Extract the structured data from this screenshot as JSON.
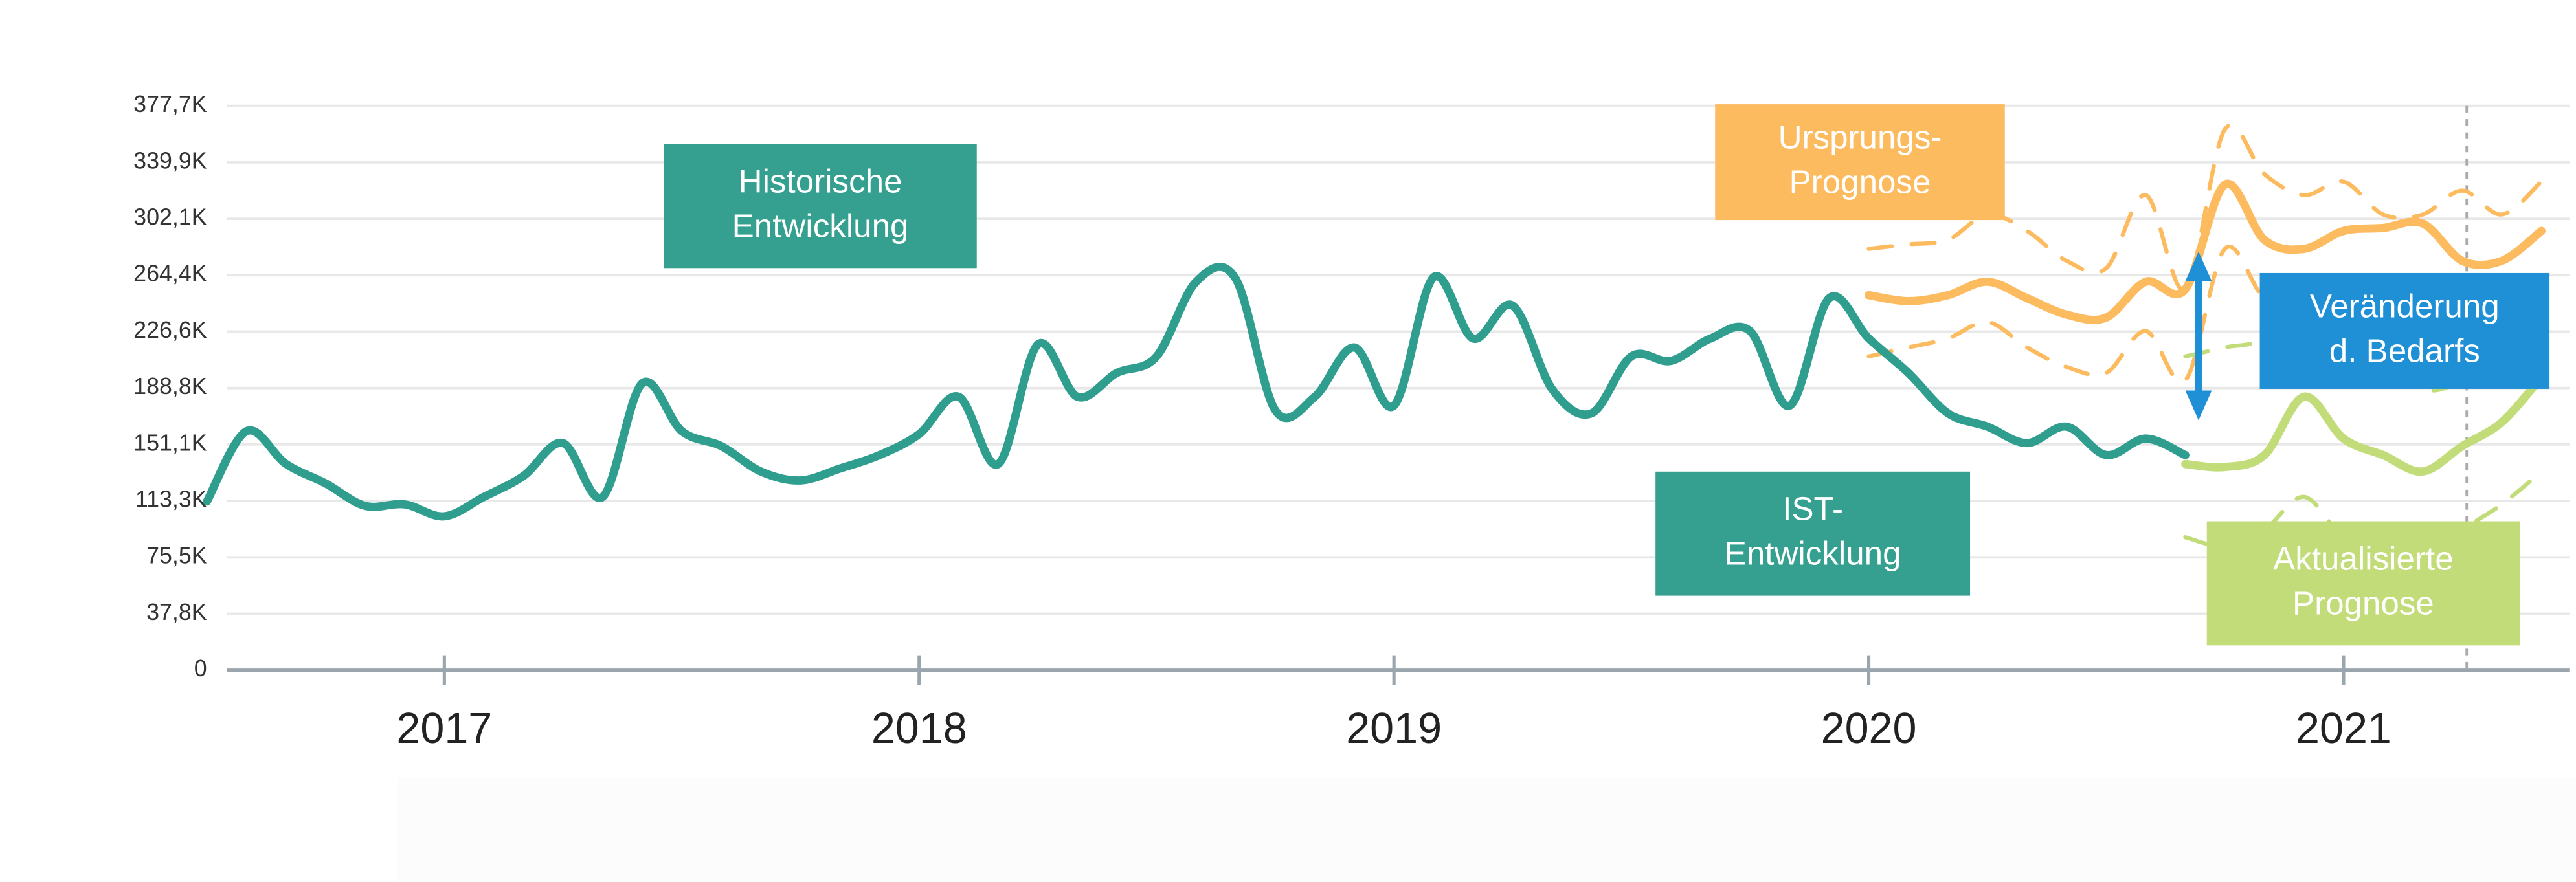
{
  "chart_data": {
    "type": "line",
    "categories": [
      null,
      null,
      null,
      null,
      null,
      null,
      "2017",
      null,
      null,
      null,
      null,
      null,
      null,
      null,
      null,
      null,
      null,
      null,
      "2018",
      null,
      null,
      null,
      null,
      null,
      null,
      null,
      null,
      null,
      null,
      null,
      "2019",
      null,
      null,
      null,
      null,
      null,
      null,
      null,
      null,
      null,
      null,
      null,
      "2020",
      null,
      null,
      null,
      null,
      null,
      null,
      null,
      null,
      null,
      null,
      null,
      "2021",
      null,
      null,
      null,
      null,
      null
    ],
    "ylim": [
      0,
      377700
    ],
    "yticks": [
      0,
      {
        "value": 37770,
        "label": "37,8K"
      },
      {
        "value": 75540,
        "label": "75,5K"
      },
      {
        "value": 113310,
        "label": "113,3K"
      },
      {
        "value": 151080,
        "label": "151,1K"
      },
      {
        "value": 188840,
        "label": "188,8K"
      },
      {
        "value": 226620,
        "label": "226,6K"
      },
      {
        "value": 264390,
        "label": "264,4K"
      },
      {
        "value": 302140,
        "label": "302,1K"
      },
      {
        "value": 339930,
        "label": "339,9K"
      },
      {
        "value": 377700,
        "label": "377,7K"
      }
    ],
    "grid": true,
    "series": [
      {
        "color": "#fdbb5f",
        "dashed": true,
        "values": [
          null,
          null,
          null,
          null,
          null,
          null,
          null,
          null,
          null,
          null,
          null,
          null,
          null,
          null,
          null,
          null,
          null,
          null,
          null,
          null,
          null,
          null,
          null,
          null,
          null,
          null,
          null,
          null,
          null,
          null,
          null,
          null,
          null,
          null,
          null,
          null,
          null,
          null,
          null,
          null,
          null,
          null,
          282000,
          285000,
          288000,
          305000,
          294000,
          274000,
          269000,
          318000,
          255000,
          362000,
          332000,
          318000,
          327000,
          305000,
          305000,
          321000,
          305000,
          327000
        ]
      },
      {
        "color": "#fdbb5f",
        "dashed": true,
        "values": [
          null,
          null,
          null,
          null,
          null,
          null,
          null,
          null,
          null,
          null,
          null,
          null,
          null,
          null,
          null,
          null,
          null,
          null,
          null,
          null,
          null,
          null,
          null,
          null,
          null,
          null,
          null,
          null,
          null,
          null,
          null,
          null,
          null,
          null,
          null,
          null,
          null,
          null,
          null,
          null,
          null,
          null,
          210000,
          216000,
          222000,
          233000,
          216000,
          203000,
          199000,
          227000,
          194000,
          282000,
          249000,
          244000,
          255000,
          249000,
          238000,
          238000,
          233000,
          255000
        ]
      },
      {
        "color": "#c3dc7a",
        "dashed": true,
        "values": [
          null,
          null,
          null,
          null,
          null,
          null,
          null,
          null,
          null,
          null,
          null,
          null,
          null,
          null,
          null,
          null,
          null,
          null,
          null,
          null,
          null,
          null,
          null,
          null,
          null,
          null,
          null,
          null,
          null,
          null,
          null,
          null,
          null,
          null,
          null,
          null,
          null,
          null,
          null,
          null,
          null,
          null,
          null,
          null,
          null,
          null,
          null,
          null,
          null,
          null,
          210000,
          216000,
          222000,
          249000,
          227000,
          210000,
          188000,
          194000,
          216000,
          260000
        ]
      },
      {
        "color": "#c3dc7a",
        "dashed": true,
        "values": [
          null,
          null,
          null,
          null,
          null,
          null,
          null,
          null,
          null,
          null,
          null,
          null,
          null,
          null,
          null,
          null,
          null,
          null,
          null,
          null,
          null,
          null,
          null,
          null,
          null,
          null,
          null,
          null,
          null,
          null,
          null,
          null,
          null,
          null,
          null,
          null,
          null,
          null,
          null,
          null,
          null,
          null,
          null,
          null,
          null,
          null,
          null,
          null,
          null,
          null,
          89000,
          83000,
          94000,
          116000,
          89000,
          83000,
          74000,
          94000,
          111000,
          133000
        ]
      },
      {
        "color": "#fdbb5f",
        "values": [
          null,
          null,
          null,
          null,
          null,
          null,
          null,
          null,
          null,
          null,
          null,
          null,
          null,
          null,
          null,
          null,
          null,
          null,
          null,
          null,
          null,
          null,
          null,
          null,
          null,
          null,
          null,
          null,
          null,
          null,
          null,
          null,
          null,
          null,
          null,
          null,
          null,
          null,
          null,
          null,
          null,
          null,
          251000,
          247000,
          251000,
          260000,
          249000,
          238000,
          236000,
          260000,
          255000,
          325000,
          288000,
          282000,
          294000,
          296000,
          299000,
          274000,
          274000,
          294000
        ]
      },
      {
        "color": "#c3dc7a",
        "values": [
          null,
          null,
          null,
          null,
          null,
          null,
          null,
          null,
          null,
          null,
          null,
          null,
          null,
          null,
          null,
          null,
          null,
          null,
          null,
          null,
          null,
          null,
          null,
          null,
          null,
          null,
          null,
          null,
          null,
          null,
          null,
          null,
          null,
          null,
          null,
          null,
          null,
          null,
          null,
          null,
          null,
          null,
          null,
          null,
          null,
          null,
          null,
          null,
          null,
          null,
          138000,
          136000,
          144000,
          183000,
          155000,
          144000,
          133000,
          150000,
          166000,
          196000
        ]
      },
      {
        "color": "#2f9e8f",
        "values": [
          113000,
          160000,
          138000,
          125000,
          110000,
          111000,
          103000,
          116000,
          130000,
          152000,
          116000,
          192000,
          160000,
          150000,
          133000,
          127000,
          135000,
          144000,
          158000,
          183000,
          138000,
          218000,
          183000,
          199000,
          210000,
          260000,
          262000,
          174000,
          183000,
          216000,
          177000,
          263000,
          222000,
          244000,
          188000,
          172000,
          210000,
          207000,
          222000,
          227000,
          177000,
          249000,
          222000,
          199000,
          172000,
          163000,
          152000,
          163000,
          144000,
          155000,
          144000,
          null,
          null,
          null,
          null,
          null,
          null,
          null,
          null,
          null
        ]
      }
    ],
    "annotations": [
      {
        "lines": [
          "Historische",
          "Entwicklung"
        ],
        "color": "#35a08f"
      },
      {
        "lines": [
          "Ursprungs-",
          "Prognose"
        ],
        "color": "#fdbb5f"
      },
      {
        "lines": [
          "IST-",
          "Entwicklung"
        ],
        "color": "#35a08f"
      },
      {
        "lines": [
          "Veränderung",
          "d. Bedarfs"
        ],
        "color": "#1f8fd6"
      },
      {
        "lines": [
          "Aktualisierte",
          "Prognose"
        ],
        "color": "#c3dc7a"
      }
    ]
  }
}
